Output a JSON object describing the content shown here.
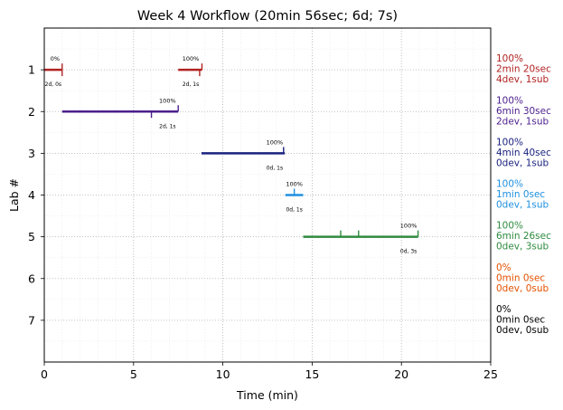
{
  "chart_data": {
    "type": "timeline",
    "title": "Week 4 Workflow (20min 56sec; 6d; 7s)",
    "xlabel": "Time (min)",
    "ylabel": "Lab #",
    "xlim": [
      0,
      25
    ],
    "ylim": [
      8,
      0
    ],
    "x_ticks": [
      0,
      5,
      10,
      15,
      20,
      25
    ],
    "y_ticks": [
      1,
      2,
      3,
      4,
      5,
      6,
      7
    ],
    "grid": true,
    "series": [
      {
        "lab": 1,
        "color": "#b22222",
        "segments": [
          {
            "start": 0,
            "end": 1.0
          },
          {
            "start": 7.5,
            "end": 8.83
          }
        ],
        "ticks_up": [
          1.0,
          8.83
        ],
        "ticks_down": [
          1.0,
          8.7
        ],
        "pct_labels": [
          {
            "x": 0.6,
            "text": "0%"
          },
          {
            "x": 8.2,
            "text": "100%"
          }
        ],
        "count_labels": [
          {
            "x": 0.5,
            "text": "2d, 0s"
          },
          {
            "x": 8.2,
            "text": "2d, 1s"
          }
        ],
        "summary": [
          "100%",
          "2min 20sec",
          "4dev, 1sub"
        ]
      },
      {
        "lab": 2,
        "color": "#4b1f8c",
        "segments": [
          {
            "start": 1.0,
            "end": 7.5
          }
        ],
        "ticks_up": [
          7.5
        ],
        "ticks_down": [
          6.0
        ],
        "pct_labels": [
          {
            "x": 6.9,
            "text": "100%"
          }
        ],
        "count_labels": [
          {
            "x": 6.9,
            "text": "2d, 1s"
          }
        ],
        "summary": [
          "100%",
          "6min 30sec",
          "2dev, 1sub"
        ]
      },
      {
        "lab": 3,
        "color": "#1a237e",
        "segments": [
          {
            "start": 8.8,
            "end": 13.47
          }
        ],
        "ticks_up": [
          13.4
        ],
        "ticks_down": [],
        "pct_labels": [
          {
            "x": 12.9,
            "text": "100%"
          }
        ],
        "count_labels": [
          {
            "x": 12.9,
            "text": "0d, 1s"
          }
        ],
        "summary": [
          "100%",
          "4min 40sec",
          "0dev, 1sub"
        ]
      },
      {
        "lab": 4,
        "color": "#1e90e0",
        "segments": [
          {
            "start": 13.5,
            "end": 14.5
          }
        ],
        "ticks_up": [
          14.0
        ],
        "ticks_down": [],
        "pct_labels": [
          {
            "x": 14.0,
            "text": "100%"
          }
        ],
        "count_labels": [
          {
            "x": 14.0,
            "text": "0d, 1s"
          }
        ],
        "summary": [
          "100%",
          "1min 0sec",
          "0dev, 1sub"
        ]
      },
      {
        "lab": 5,
        "color": "#2e8b3e",
        "segments": [
          {
            "start": 14.5,
            "end": 20.93
          }
        ],
        "ticks_up": [
          16.6,
          17.6,
          20.93
        ],
        "ticks_down": [],
        "pct_labels": [
          {
            "x": 20.4,
            "text": "100%"
          }
        ],
        "count_labels": [
          {
            "x": 20.4,
            "text": "0d, 3s"
          }
        ],
        "summary": [
          "100%",
          "6min 26sec",
          "0dev, 3sub"
        ]
      },
      {
        "lab": 6,
        "color": "#e65100",
        "segments": [],
        "ticks_up": [],
        "ticks_down": [],
        "pct_labels": [],
        "count_labels": [],
        "summary": [
          "0%",
          "0min 0sec",
          "0dev, 0sub"
        ]
      },
      {
        "lab": 7,
        "color": "#000000",
        "segments": [],
        "ticks_up": [],
        "ticks_down": [],
        "pct_labels": [],
        "count_labels": [],
        "summary": [
          "0%",
          "0min 0sec",
          "0dev, 0sub"
        ]
      }
    ]
  }
}
